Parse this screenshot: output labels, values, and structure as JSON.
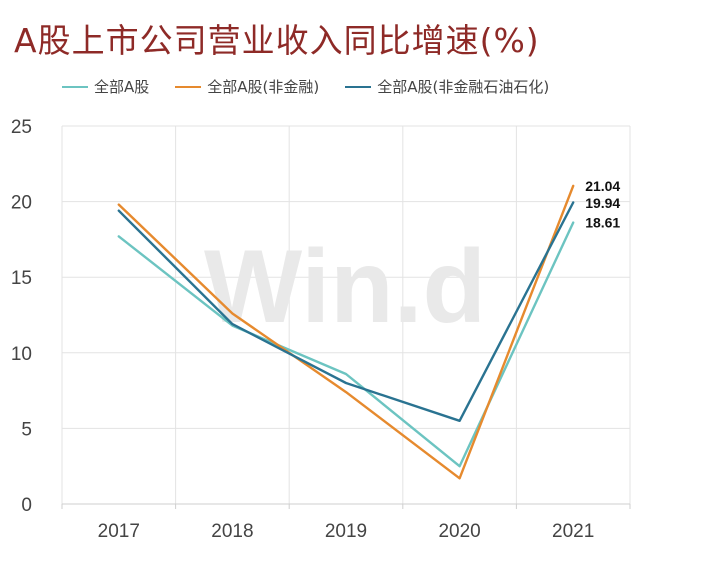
{
  "chart_data": {
    "type": "line",
    "title": "A股上市公司营业收入同比增速(%)",
    "watermark": "Win.d",
    "categories": [
      "2017",
      "2018",
      "2019",
      "2020",
      "2021"
    ],
    "ylim": [
      0,
      25
    ],
    "yticks": [
      "25",
      "20",
      "15",
      "10",
      "5",
      "0"
    ],
    "grid": true,
    "legend_position": "top",
    "series": [
      {
        "name": "全部A股",
        "color": "#6cc4c1",
        "values": [
          17.7,
          11.8,
          8.6,
          2.5,
          18.61
        ],
        "end_label": "18.61"
      },
      {
        "name": "全部A股(非金融)",
        "color": "#e68a2e",
        "values": [
          19.8,
          12.6,
          7.4,
          1.7,
          21.04
        ],
        "end_label": "21.04"
      },
      {
        "name": "全部A股(非金融石油石化)",
        "color": "#2a7391",
        "values": [
          19.4,
          11.9,
          8.0,
          5.5,
          19.94
        ],
        "end_label": "19.94"
      }
    ]
  }
}
